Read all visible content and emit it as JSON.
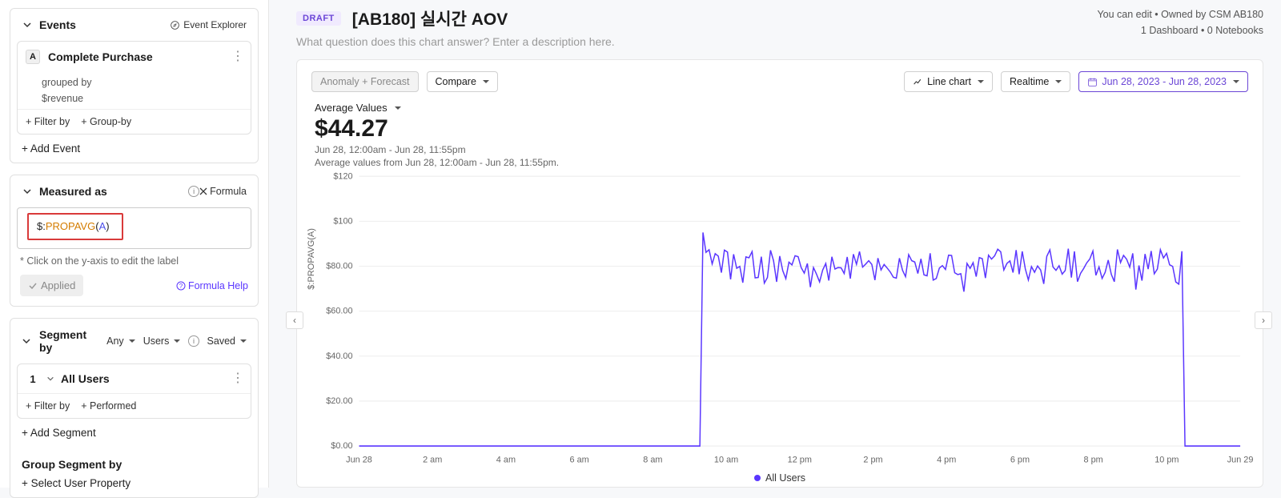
{
  "header": {
    "draft_badge": "DRAFT",
    "title": "[AB180] 실시간 AOV",
    "description_placeholder": "What question does this chart answer? Enter a description here.",
    "edit_note": "You can edit • Owned by CSM AB180",
    "dash_note": "1 Dashboard • 0 Notebooks"
  },
  "sidebar": {
    "events": {
      "title": "Events",
      "explorer": "Event Explorer",
      "letter": "A",
      "event_name": "Complete Purchase",
      "grouped_by": "grouped by",
      "revenue": "$revenue",
      "filter_by": "+ Filter by",
      "group_by": "+ Group-by",
      "add_event": "+ Add Event"
    },
    "measured": {
      "title": "Measured as",
      "x_formula": "Formula",
      "formula_prefix": "$:",
      "formula_fn": "PROPAVG",
      "formula_arg": "A",
      "hint": "* Click on the y-axis to edit the label",
      "applied": "Applied",
      "formula_help": "Formula Help"
    },
    "segment": {
      "title": "Segment by",
      "any": "Any",
      "users": "Users",
      "saved": "Saved",
      "num": "1",
      "name": "All Users",
      "filter_by": "+ Filter by",
      "performed": "+ Performed",
      "add_segment": "+ Add Segment",
      "group_title": "Group Segment by",
      "select_prop": "+ Select User Property"
    }
  },
  "toolbar": {
    "anomaly": "Anomaly + Forecast",
    "compare": "Compare",
    "chart_type": "Line chart",
    "realtime": "Realtime",
    "date_range": "Jun 28, 2023 - Jun 28, 2023"
  },
  "metric": {
    "label": "Average Values",
    "value": "$44.27",
    "sub1": "Jun 28, 12:00am - Jun 28, 11:55pm",
    "sub2": "Average values from Jun 28, 12:00am - Jun 28, 11:55pm."
  },
  "chart": {
    "type": "line",
    "y_axis_vertical_label": "$:PROPAVG(A)",
    "series_color": "#5a36ff",
    "grid_color": "#eeeeee",
    "background_color": "#ffffff",
    "ylim": [
      0,
      120
    ],
    "y_ticks": [
      {
        "v": 0,
        "label": "$0.00"
      },
      {
        "v": 20,
        "label": "$20.00"
      },
      {
        "v": 40,
        "label": "$40.00"
      },
      {
        "v": 60,
        "label": "$60.00"
      },
      {
        "v": 80,
        "label": "$80.00"
      },
      {
        "v": 100,
        "label": "$100"
      },
      {
        "v": 120,
        "label": "$120"
      }
    ],
    "x_ticks": [
      "Jun 28",
      "2 am",
      "4 am",
      "6 am",
      "8 am",
      "10 am",
      "12 pm",
      "2 pm",
      "4 pm",
      "6 pm",
      "8 pm",
      "10 pm",
      "Jun 29"
    ],
    "n_points": 288,
    "zero_until_index": 112,
    "zero_after_index": 268,
    "active_mean": 80,
    "active_jitter": 8,
    "legend": "All Users"
  }
}
